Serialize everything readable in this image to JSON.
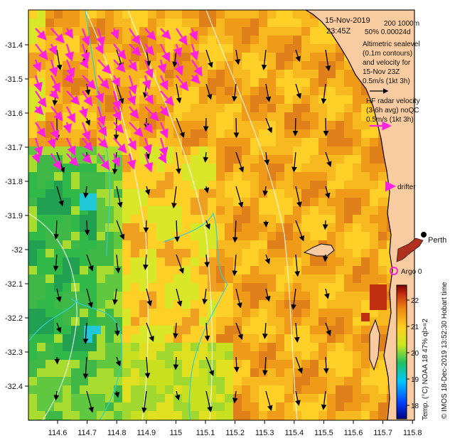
{
  "header": {
    "date": "15-Nov-2019",
    "time": "23:45Z",
    "isobaths": "200  1000m",
    "stats": "50% 0.00024d"
  },
  "legend": {
    "alt_lines": [
      "Altimetric sealevel",
      "(0.1m contours)",
      "and velocity for",
      "15-Nov 23Z"
    ],
    "alt_scale": "0.5m/s (1kt 3h)",
    "hf_lines": [
      "HF radar velocity",
      "(3-6h avg) noQC"
    ],
    "hf_scale": "0.5m/s (1kt 3h)",
    "drifter": "drifter",
    "argo": "Argo 0",
    "city": "Perth"
  },
  "colorbar": {
    "ticks": [
      "22",
      "21",
      "20",
      "19",
      "18"
    ],
    "label": "Temp. (°C) NOAA 18 47% ql>=2",
    "credit": "© IMOS 18-Dec-2019 13:52:30 Hobart time"
  },
  "axes": {
    "x_ticks": [
      "114.6",
      "114.7",
      "114.8",
      "114.9",
      "115",
      "115.1",
      "115.2",
      "115.3",
      "115.4",
      "115.5",
      "115.6",
      "115.7",
      "115.8"
    ],
    "y_ticks": [
      "-31.4",
      "-31.5",
      "-31.6",
      "-31.7",
      "-31.8",
      "-31.9",
      "-32",
      "-32.1",
      "-32.2",
      "-32.3",
      "-32.4"
    ]
  },
  "colors": {
    "land": "#f9cba0",
    "hf_arrow": "#ff20e0",
    "alt_arrow": "#000000",
    "isobath": "#ffffff",
    "sealevel_contour": "#30d0d0",
    "argo": "#ff20e0"
  }
}
